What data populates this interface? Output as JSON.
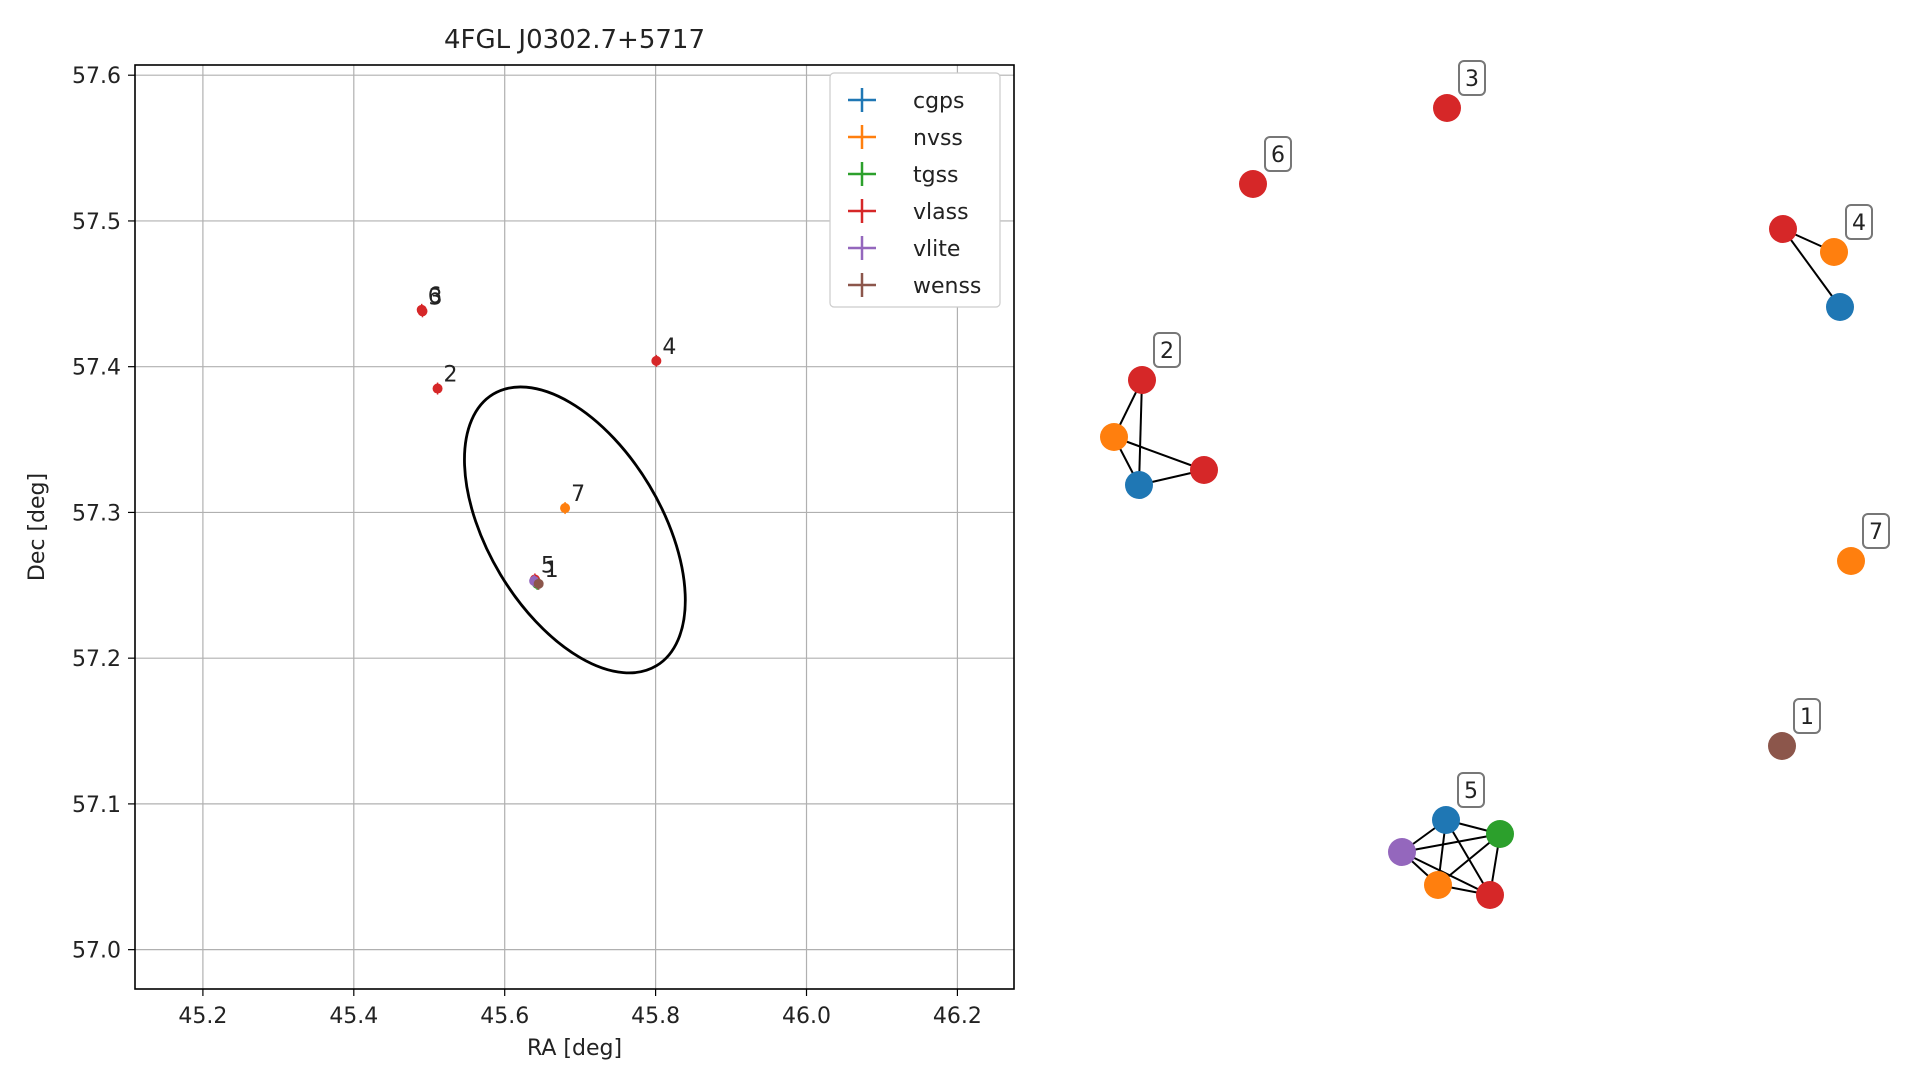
{
  "chart_data": [
    {
      "type": "scatter",
      "title": "4FGL J0302.7+5717",
      "xlabel": "RA [deg]",
      "ylabel": "Dec [deg]",
      "xlim": [
        45.11,
        46.275
      ],
      "ylim": [
        56.973,
        57.607
      ],
      "xticks": [
        45.2,
        45.4,
        45.6,
        45.8,
        46.0,
        46.2
      ],
      "xtick_labels": [
        "45.2",
        "45.4",
        "45.6",
        "45.8",
        "46.0",
        "46.2"
      ],
      "yticks": [
        57.0,
        57.1,
        57.2,
        57.3,
        57.4,
        57.5,
        57.6
      ],
      "ytick_labels": [
        "57.0",
        "57.1",
        "57.2",
        "57.3",
        "57.4",
        "57.5",
        "57.6"
      ],
      "grid": true,
      "legend_position": "top-right",
      "series": [
        {
          "name": "cgps",
          "color": "#1f77b4",
          "points": [
            {
              "x": 45.642,
              "y": 57.252,
              "label": ""
            }
          ]
        },
        {
          "name": "nvss",
          "color": "#ff7f0e",
          "points": [
            {
              "x": 45.68,
              "y": 57.303,
              "label": "7"
            },
            {
              "x": 45.641,
              "y": 57.253,
              "label": ""
            }
          ]
        },
        {
          "name": "tgss",
          "color": "#2ca02c",
          "points": [
            {
              "x": 45.643,
              "y": 57.251,
              "label": ""
            }
          ]
        },
        {
          "name": "vlass",
          "color": "#d62728",
          "points": [
            {
              "x": 45.49,
              "y": 57.439,
              "label": "6"
            },
            {
              "x": 45.491,
              "y": 57.438,
              "label": "3"
            },
            {
              "x": 45.511,
              "y": 57.385,
              "label": "2"
            },
            {
              "x": 45.801,
              "y": 57.404,
              "label": "4"
            },
            {
              "x": 45.64,
              "y": 57.254,
              "label": "5"
            }
          ]
        },
        {
          "name": "vlite",
          "color": "#9467bd",
          "points": [
            {
              "x": 45.639,
              "y": 57.253,
              "label": ""
            }
          ]
        },
        {
          "name": "wenss",
          "color": "#8c564b",
          "points": [
            {
              "x": 45.645,
              "y": 57.251,
              "label": "1"
            }
          ]
        }
      ],
      "ellipse": {
        "center": [
          45.693,
          57.288
        ],
        "semi_major_deg": 0.21,
        "semi_minor_deg": 0.115,
        "angle_deg": 59,
        "color": "#000000"
      }
    },
    {
      "type": "network",
      "nodes": [
        {
          "id": "a",
          "color": "#d62728"
        },
        {
          "id": "b",
          "color": "#d62728"
        },
        {
          "id": "c",
          "color": "#d62728"
        },
        {
          "id": "d",
          "color": "#ff7f0e"
        },
        {
          "id": "e",
          "color": "#1f77b4"
        },
        {
          "id": "f",
          "color": "#d62728"
        },
        {
          "id": "g",
          "color": "#ff7f0e"
        },
        {
          "id": "h",
          "color": "#1f77b4"
        },
        {
          "id": "i",
          "color": "#d62728"
        },
        {
          "id": "j",
          "color": "#ff7f0e"
        },
        {
          "id": "k",
          "color": "#8c564b"
        },
        {
          "id": "l",
          "color": "#1f77b4"
        },
        {
          "id": "m",
          "color": "#2ca02c"
        },
        {
          "id": "n",
          "color": "#9467bd"
        },
        {
          "id": "o",
          "color": "#ff7f0e"
        },
        {
          "id": "p",
          "color": "#d62728"
        }
      ],
      "edges": [
        [
          "c",
          "d"
        ],
        [
          "c",
          "e"
        ],
        [
          "f",
          "g"
        ],
        [
          "f",
          "h"
        ],
        [
          "g",
          "h"
        ],
        [
          "g",
          "i"
        ],
        [
          "h",
          "i"
        ],
        [
          "l",
          "m"
        ],
        [
          "l",
          "n"
        ],
        [
          "l",
          "o"
        ],
        [
          "l",
          "p"
        ],
        [
          "m",
          "n"
        ],
        [
          "m",
          "o"
        ],
        [
          "m",
          "p"
        ],
        [
          "n",
          "o"
        ],
        [
          "n",
          "p"
        ],
        [
          "o",
          "p"
        ]
      ],
      "group_labels": [
        {
          "text": "3",
          "node": "a"
        },
        {
          "text": "6",
          "node": "b"
        },
        {
          "text": "4",
          "node": "d"
        },
        {
          "text": "2",
          "node": "f"
        },
        {
          "text": "7",
          "node": "j"
        },
        {
          "text": "1",
          "node": "k"
        },
        {
          "text": "5",
          "node": "l"
        }
      ]
    }
  ]
}
